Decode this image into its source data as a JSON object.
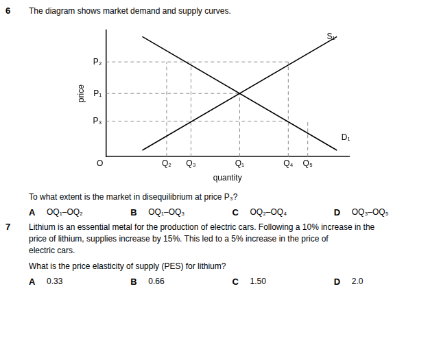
{
  "chart_data": {
    "type": "line",
    "xlabel": "quantity",
    "ylabel": "price",
    "xlim": [
      0,
      10
    ],
    "ylim": [
      0,
      10
    ],
    "xticks": [
      {
        "value": 2.5,
        "label": "Q₂"
      },
      {
        "value": 3.5,
        "label": "Q₃"
      },
      {
        "value": 5.5,
        "label": "Q₁"
      },
      {
        "value": 7.5,
        "label": "Q₄"
      },
      {
        "value": 8.3,
        "label": "Q₅"
      }
    ],
    "yticks": [
      {
        "value": 7.5,
        "label": "P₂"
      },
      {
        "value": 5.0,
        "label": "P₁"
      },
      {
        "value": 2.8,
        "label": "P₃"
      }
    ],
    "grid": false,
    "series": [
      {
        "color": "#000000",
        "line_style": "solid",
        "x": [
          1.5,
          9.5
        ],
        "values": [
          0.5,
          9.5
        ]
      },
      {
        "color": "#000000",
        "line_style": "solid",
        "x": [
          1.5,
          9.5
        ],
        "values": [
          9.5,
          0.5
        ]
      },
      {
        "color": "#888888",
        "line_style": "dashed",
        "x": [
          0,
          7.5
        ],
        "values": [
          7.5,
          7.5
        ]
      },
      {
        "color": "#888888",
        "line_style": "dashed",
        "x": [
          0,
          5.5
        ],
        "values": [
          5.0,
          5.0
        ]
      },
      {
        "color": "#888888",
        "line_style": "dashed",
        "x": [
          0,
          7.5
        ],
        "values": [
          2.8,
          2.8
        ]
      },
      {
        "color": "#888888",
        "line_style": "dashed",
        "x": [
          2.5,
          2.5
        ],
        "values": [
          0,
          7.5
        ]
      },
      {
        "color": "#888888",
        "line_style": "dashed",
        "x": [
          3.5,
          3.5
        ],
        "values": [
          0,
          7.5
        ]
      },
      {
        "color": "#888888",
        "line_style": "dashed",
        "x": [
          5.5,
          5.5
        ],
        "values": [
          0,
          5.0
        ]
      },
      {
        "color": "#888888",
        "line_style": "dashed",
        "x": [
          7.5,
          7.5
        ],
        "values": [
          0,
          7.5
        ]
      },
      {
        "color": "#888888",
        "line_style": "dashed",
        "x": [
          8.3,
          8.3
        ],
        "values": [
          0,
          2.8
        ]
      }
    ],
    "annotations": [
      {
        "text": "O",
        "x": 0,
        "y": 0
      },
      {
        "text": "S₁",
        "x": 9.0,
        "y": 9.5
      },
      {
        "text": "D₁",
        "x": 9.6,
        "y": 1.5
      },
      {
        "number": "6",
        "lines": [
          "The diagram shows market demand and supply curves."
        ]
      },
      {
        "lines": [
          "To what extent is the market in disequilibrium at price P₃?"
        ],
        "options": [
          [
            "A",
            "OQ₁–OQ₂"
          ],
          [
            "B",
            "OQ₁–OQ₃"
          ],
          [
            "C",
            "OQ₂–OQ₄"
          ],
          [
            "D",
            "OQ₃–OQ₅"
          ]
        ]
      },
      {
        "number": "7",
        "lines": [
          "Lithium is an essential metal for the production of electric cars. Following a 10% increase in the",
          "price of lithium, supplies increase by 15%. This led to a 5% increase in the price of",
          "electric cars."
        ]
      },
      {
        "lines": [
          "What is the price elasticity of supply (PES) for lithium?"
        ],
        "options": [
          [
            "A",
            "0.33"
          ],
          [
            "B",
            "0.66"
          ],
          [
            "C",
            "1.50"
          ],
          [
            "D",
            "2.0"
          ]
        ]
      }
    ]
  }
}
